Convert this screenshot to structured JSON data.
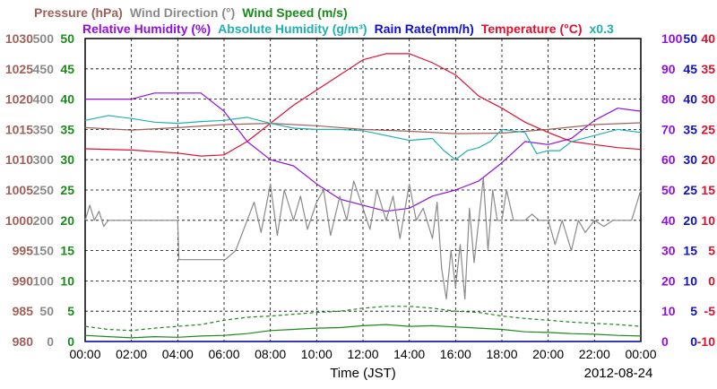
{
  "chart_data": {
    "type": "line",
    "date": "2012-08-24",
    "xlabel": "Time (JST)",
    "x_ticks": [
      "00:00",
      "02:00",
      "04:00",
      "06:00",
      "08:00",
      "10:00",
      "12:00",
      "14:00",
      "16:00",
      "18:00",
      "20:00",
      "22:00",
      "00:00"
    ],
    "xlim_hours": [
      0,
      24
    ],
    "grid": true,
    "legend": [
      {
        "label": "Pressure (hPa)",
        "color": "#a0605a",
        "row": 1
      },
      {
        "label": "Wind Direction (°)",
        "color": "#8a8a8a",
        "row": 1
      },
      {
        "label": "Wind Speed (m/s)",
        "color": "#1a8a1a",
        "row": 1
      },
      {
        "label": "Relative Humidity (%)",
        "color": "#9010e0",
        "row": 2
      },
      {
        "label": "Absolute Humidity (g/m³)",
        "color": "#20b0b0",
        "row": 2
      },
      {
        "label": "Rain Rate(mm/h)",
        "color": "#1010d0",
        "row": 2
      },
      {
        "label": "Temperature (°C)",
        "color": "#e01030",
        "row": 2
      },
      {
        "label": "x0.3",
        "color": "#20b0b0",
        "row": 2
      }
    ],
    "axes": {
      "pressure": {
        "color": "#a0605a",
        "min": 980,
        "max": 1030,
        "ticks": [
          "1030",
          "1025",
          "1020",
          "1015",
          "1010",
          "1005",
          "1000",
          "995",
          "990",
          "985",
          "980"
        ]
      },
      "wind_direction": {
        "color": "#8a8a8a",
        "min": 0,
        "max": 500,
        "ticks": [
          "500",
          "450",
          "400",
          "350",
          "300",
          "250",
          "200",
          "150",
          "100",
          "50",
          "0"
        ]
      },
      "wind_speed": {
        "color": "#1a8a1a",
        "min": 0,
        "max": 50,
        "ticks": [
          "50",
          "45",
          "40",
          "35",
          "30",
          "25",
          "20",
          "15",
          "10",
          "5",
          "0"
        ]
      },
      "humidity": {
        "color": "#9010e0",
        "min": 0,
        "max": 100,
        "ticks": [
          "100",
          "90",
          "80",
          "70",
          "60",
          "50",
          "40",
          "30",
          "20",
          "10",
          "0"
        ]
      },
      "abs_humidity_rain": {
        "color": "#1010d0",
        "min": 0,
        "max": 50,
        "ticks": [
          "50",
          "45",
          "40",
          "35",
          "30",
          "25",
          "20",
          "15",
          "10",
          "5",
          "0"
        ]
      },
      "temperature": {
        "color": "#e01030",
        "min": -10,
        "max": 40,
        "ticks": [
          "40",
          "35",
          "30",
          "25",
          "20",
          "15",
          "10",
          "5",
          "0",
          "-5",
          "-10"
        ]
      }
    },
    "series": [
      {
        "name": "Temperature (°C)",
        "axis": "temperature",
        "color": "#e01030",
        "x": [
          0,
          2,
          4,
          5,
          6,
          7,
          8,
          9,
          10,
          11,
          12,
          13,
          14,
          15,
          16,
          17,
          18,
          19,
          20,
          21,
          22,
          23,
          24
        ],
        "y": [
          21.8,
          21.6,
          21.1,
          20.6,
          20.8,
          23.0,
          26.0,
          29.0,
          31.5,
          34.0,
          36.5,
          37.5,
          37.5,
          36.0,
          34.0,
          30.5,
          28.5,
          26.2,
          24.5,
          23.0,
          22.5,
          22.0,
          21.7
        ]
      },
      {
        "name": "Relative Humidity (%)",
        "axis": "humidity",
        "color": "#9010e0",
        "x": [
          0,
          2,
          3,
          4,
          5,
          6,
          7,
          8,
          9,
          10,
          11,
          12,
          13,
          14,
          15,
          16,
          17,
          18,
          19,
          20,
          21,
          22,
          23,
          24
        ],
        "y": [
          80,
          80,
          82,
          82,
          82,
          76,
          66,
          60,
          58,
          52,
          47,
          45,
          43,
          44,
          48,
          50,
          53,
          59,
          66,
          65,
          67,
          73,
          77,
          76
        ]
      },
      {
        "name": "Pressure (hPa)",
        "axis": "pressure",
        "color": "#a0605a",
        "x": [
          0,
          2,
          4,
          6,
          8,
          10,
          12,
          14,
          16,
          18,
          20,
          22,
          24
        ],
        "y": [
          1015.3,
          1014.9,
          1015.3,
          1015.8,
          1016.0,
          1015.6,
          1015.0,
          1014.7,
          1014.3,
          1014.4,
          1015.0,
          1015.8,
          1016.1
        ]
      },
      {
        "name": "Absolute Humidity (g/m³)",
        "axis": "abs_humidity_rain",
        "scale": 0.3,
        "color": "#20b0b0",
        "x": [
          0,
          1,
          2,
          3,
          4,
          5,
          6,
          7,
          8,
          9,
          10,
          11,
          12,
          13,
          14,
          15,
          15.5,
          16,
          16.5,
          17,
          17.5,
          18,
          19,
          19.5,
          20,
          20.5,
          21,
          22,
          23,
          24
        ],
        "y": [
          36.5,
          37.3,
          36.8,
          36.2,
          36.0,
          36.3,
          36.5,
          37.0,
          36.0,
          35.2,
          35.0,
          35.0,
          34.8,
          34.0,
          33.2,
          33.5,
          31.5,
          30.0,
          31.5,
          32.0,
          33.0,
          35.0,
          34.5,
          31.0,
          31.5,
          31.5,
          33.0,
          34.0,
          35.0,
          34.5
        ]
      },
      {
        "name": "Rain Rate(mm/h)",
        "axis": "abs_humidity_rain",
        "color": "#1010d0",
        "x": [
          0,
          24
        ],
        "y": [
          0,
          0
        ]
      },
      {
        "name": "Wind Direction (°)",
        "axis": "wind_direction",
        "color": "#8a8a8a",
        "x": [
          0,
          0.2,
          0.4,
          0.6,
          0.8,
          1.0,
          1.2,
          1.4,
          1.6,
          1.8,
          2.0,
          4.0,
          4.05,
          6.0,
          6.05,
          6.5,
          7.0,
          7.3,
          7.6,
          8.0,
          8.3,
          8.6,
          9.0,
          9.3,
          9.6,
          10.0,
          10.3,
          10.6,
          11.0,
          11.3,
          11.6,
          12.0,
          12.3,
          12.6,
          13.0,
          13.3,
          13.6,
          14.0,
          14.3,
          14.6,
          15.0,
          15.2,
          15.4,
          15.6,
          15.8,
          16.0,
          16.2,
          16.4,
          16.6,
          16.8,
          17.0,
          17.2,
          17.4,
          17.6,
          17.8,
          18.0,
          18.2,
          18.5,
          19.0,
          19.3,
          19.6,
          20.0,
          20.3,
          20.6,
          21.0,
          21.3,
          21.6,
          22.0,
          22.4,
          22.8,
          23.2,
          23.6,
          24.0
        ],
        "y": [
          200,
          225,
          200,
          215,
          190,
          200,
          200,
          200,
          200,
          200,
          200,
          200,
          135,
          135,
          135,
          150,
          200,
          230,
          180,
          260,
          175,
          250,
          200,
          240,
          185,
          230,
          250,
          175,
          240,
          200,
          265,
          220,
          185,
          250,
          200,
          240,
          170,
          260,
          200,
          220,
          170,
          230,
          120,
          70,
          150,
          90,
          160,
          70,
          220,
          130,
          200,
          270,
          150,
          250,
          200,
          200,
          250,
          200,
          200,
          210,
          200,
          200,
          160,
          200,
          150,
          200,
          180,
          200,
          190,
          200,
          200,
          200,
          250
        ]
      },
      {
        "name": "Wind Speed (m/s)",
        "axis": "wind_speed",
        "color": "#1a8a1a",
        "x": [
          0,
          1,
          2,
          3,
          4,
          5,
          6,
          7,
          8,
          9,
          10,
          11,
          12,
          13,
          14,
          15,
          16,
          17,
          18,
          19,
          20,
          21,
          22,
          23,
          24
        ],
        "y": [
          1.0,
          0.8,
          0.6,
          0.8,
          0.7,
          0.9,
          1.0,
          1.3,
          1.8,
          2.0,
          2.2,
          2.3,
          2.6,
          2.8,
          2.5,
          2.6,
          2.4,
          2.2,
          2.0,
          1.6,
          1.5,
          1.3,
          1.2,
          1.0,
          0.9
        ]
      },
      {
        "name": "Wind Speed gust (m/s)",
        "axis": "wind_speed",
        "color": "#1a8a1a",
        "dashed": true,
        "x": [
          0,
          1,
          2,
          3,
          4,
          5,
          6,
          7,
          8,
          9,
          10,
          11,
          12,
          13,
          14,
          15,
          16,
          17,
          18,
          19,
          20,
          21,
          22,
          23,
          24
        ],
        "y": [
          2.5,
          2.0,
          1.8,
          2.2,
          2.5,
          2.8,
          3.5,
          4.0,
          4.2,
          4.5,
          4.8,
          5.0,
          5.5,
          5.8,
          5.8,
          5.5,
          5.0,
          4.8,
          4.2,
          3.8,
          3.5,
          3.2,
          3.0,
          2.8,
          2.5
        ]
      }
    ]
  }
}
